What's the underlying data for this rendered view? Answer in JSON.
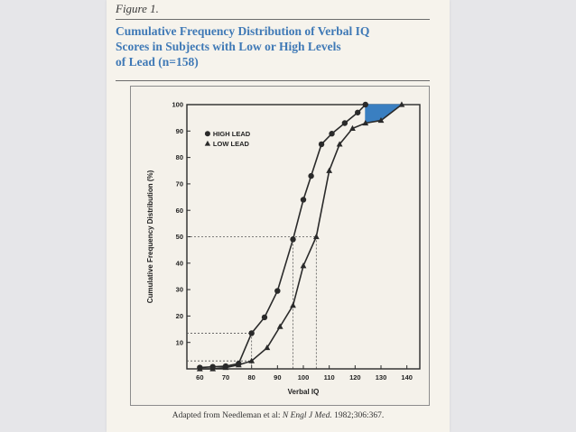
{
  "figure_label": "Figure 1.",
  "title_lines": [
    "Cumulative Frequency Distribution of Verbal IQ",
    "Scores in Subjects with Low or High Levels",
    "of Lead (n=158)"
  ],
  "caption": {
    "prefix": "Adapted from Needleman et al:",
    "journal": "N Engl J Med.",
    "suffix": "1982;306:367."
  },
  "colors": {
    "title": "#3f79b6",
    "fill": "#3a7fc1",
    "ink": "#2a2a2a"
  },
  "chart_data": {
    "type": "line",
    "xlabel": "Verbal IQ",
    "ylabel": "Cumulative Frequency Distribution (%)",
    "xlim": [
      55,
      145
    ],
    "ylim": [
      0,
      100
    ],
    "xticks": [
      60,
      70,
      80,
      90,
      100,
      110,
      120,
      130,
      140
    ],
    "yticks": [
      10,
      20,
      30,
      40,
      50,
      60,
      70,
      80,
      90,
      100
    ],
    "legend_position": "upper-left",
    "series": [
      {
        "name": "HIGH LEAD",
        "marker": "circle",
        "x": [
          60,
          65,
          70,
          75,
          80,
          85,
          90,
          96,
          100,
          103,
          107,
          111,
          116,
          121,
          124
        ],
        "y": [
          0.5,
          0.8,
          1,
          2,
          13.5,
          19.5,
          29.5,
          49,
          64,
          73,
          85,
          89,
          93,
          97,
          100
        ]
      },
      {
        "name": "LOW LEAD",
        "marker": "triangle",
        "x": [
          60,
          65,
          70,
          75,
          80,
          86,
          91,
          96,
          100,
          105,
          110,
          114,
          119,
          124,
          130,
          138
        ],
        "y": [
          0,
          0,
          0.5,
          1.5,
          3,
          8,
          16,
          24,
          39,
          50,
          75,
          85,
          91,
          93,
          94,
          100
        ]
      }
    ],
    "reference_lines": [
      {
        "y": 50,
        "x_values": [
          96,
          105
        ]
      },
      {
        "y": 13.5,
        "x_values": [
          80
        ]
      },
      {
        "y": 3,
        "x_values": [
          80
        ]
      }
    ],
    "shaded_region": {
      "between_series": [
        "HIGH LEAD",
        "LOW LEAD"
      ],
      "x_range": [
        124,
        138
      ]
    }
  }
}
